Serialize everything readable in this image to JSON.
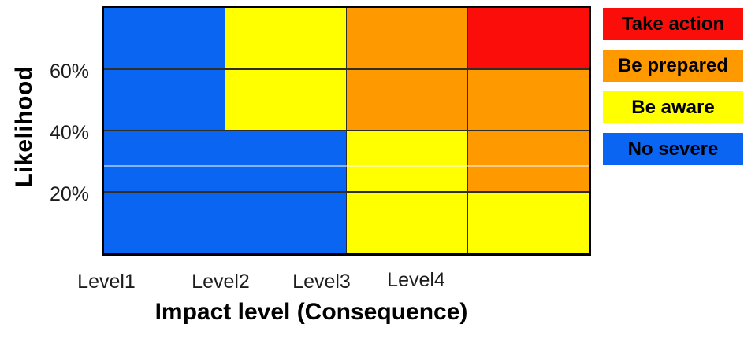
{
  "chart_data": {
    "type": "heatmap",
    "title": "",
    "xlabel": "Impact level (Consequence)",
    "ylabel": "Likelihood",
    "x_categories": [
      "Level1",
      "Level2",
      "Level3",
      "Level4"
    ],
    "y_ticks": [
      "60%",
      "40%",
      "20%"
    ],
    "y_axis": {
      "min": 0,
      "max": 80,
      "unit": "%",
      "gridline_values": [
        60,
        40,
        20
      ]
    },
    "grid": true,
    "legend_position": "right",
    "rows": [
      {
        "likelihood_band": "60-80%",
        "cells": [
          "no-severe",
          "be-aware",
          "be-prepared",
          "take-action"
        ]
      },
      {
        "likelihood_band": "40-60%",
        "cells": [
          "no-severe",
          "be-aware",
          "be-prepared",
          "be-prepared"
        ]
      },
      {
        "likelihood_band": "20-40%",
        "cells": [
          "no-severe",
          "no-severe",
          "be-aware",
          "be-prepared"
        ]
      },
      {
        "likelihood_band": "0-20%",
        "cells": [
          "no-severe",
          "no-severe",
          "be-aware",
          "be-aware"
        ]
      }
    ],
    "legend": [
      {
        "id": "take-action",
        "label": "Take action",
        "color": "#FB0D0A"
      },
      {
        "id": "be-prepared",
        "label": "Be prepared",
        "color": "#FF9900"
      },
      {
        "id": "be-aware",
        "label": "Be aware",
        "color": "#FFFF00"
      },
      {
        "id": "no-severe",
        "label": "No severe",
        "color": "#0A66F2"
      }
    ],
    "colors": {
      "plot_border": "#000000",
      "gridline": "#2e2e2e",
      "text": "#1c1c1c",
      "background": "#ffffff"
    }
  }
}
